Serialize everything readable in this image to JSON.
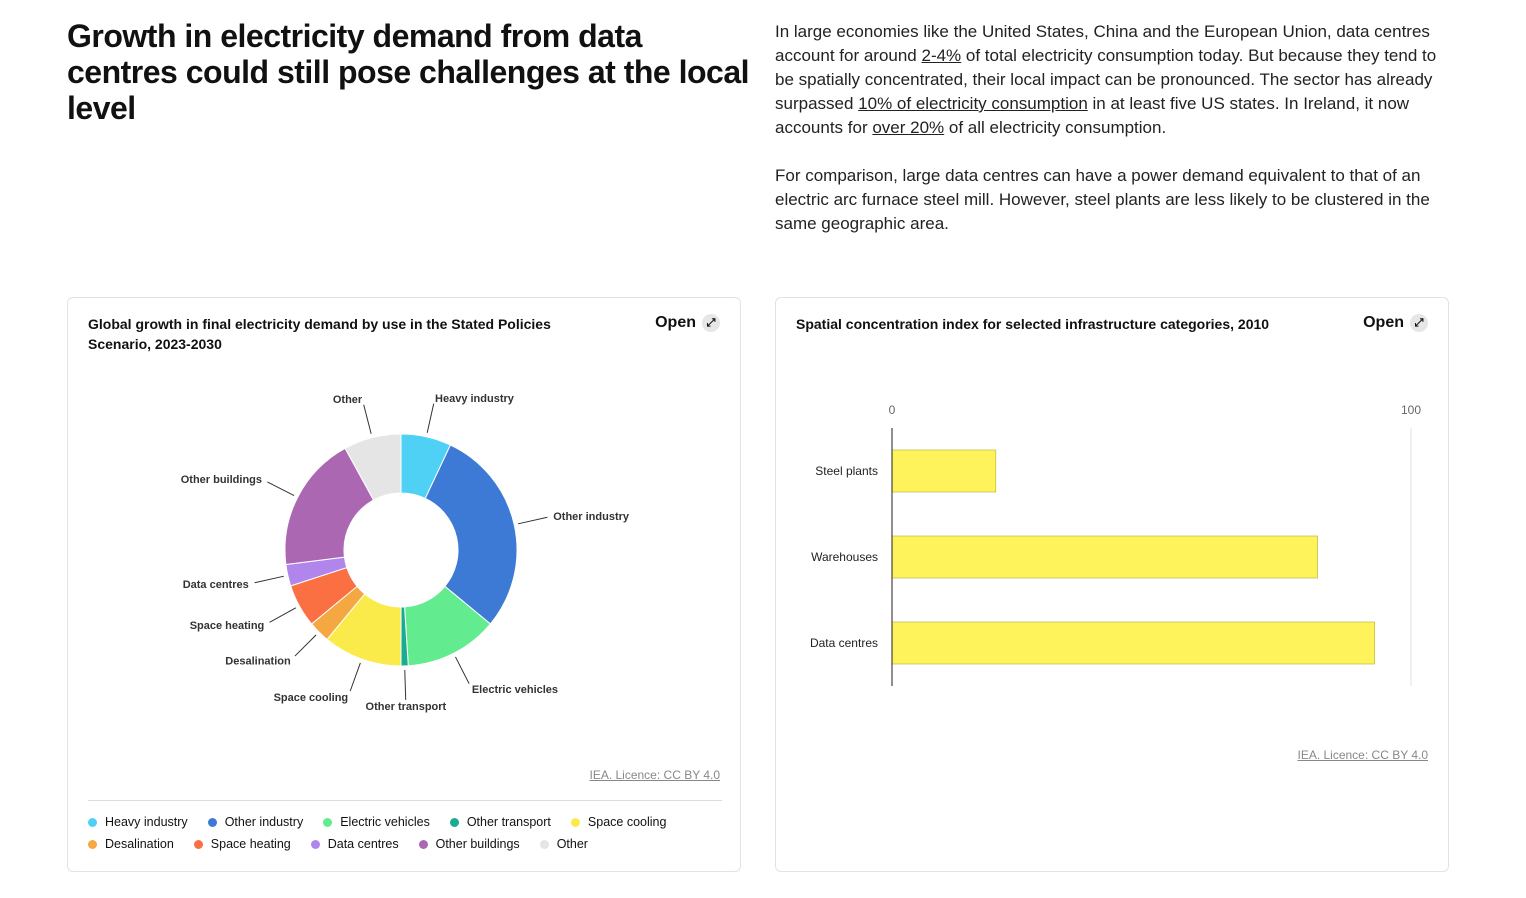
{
  "header": {
    "title": "Growth in electricity demand from data centres could still pose challenges at the local level"
  },
  "paragraphs": [
    [
      "In large economies like the United States, China and the European Union, data centres account for around ",
      "2-4%",
      " of total electricity consumption today. But because they tend to be spatially concentrated, their local impact can be pronounced. The sector has already surpassed ",
      "10% of electricity consumption",
      " in at least five US states. In Ireland, it now accounts for ",
      "over 20%",
      " of all electricity consumption."
    ],
    [
      "For comparison, large data centres can have a power demand equivalent to that of an electric arc furnace steel mill. However, steel plants are less likely to be clustered in the same geographic area."
    ]
  ],
  "chart_data": [
    {
      "type": "donut",
      "title": "Global growth in final electricity demand by use in the Stated Policies Scenario, 2023-2030",
      "open_label": "Open",
      "source": "IEA. Licence: CC BY 4.0",
      "categories": [
        "Heavy industry",
        "Other industry",
        "Electric vehicles",
        "Other transport",
        "Space cooling",
        "Desalination",
        "Space heating",
        "Data centres",
        "Other buildings",
        "Other"
      ],
      "values": [
        7,
        29,
        13,
        1,
        11,
        3,
        6,
        3,
        19,
        8
      ],
      "colors": [
        "#4fd0f5",
        "#3d7ad6",
        "#62ec8f",
        "#1aab93",
        "#fbeb4a",
        "#f5a742",
        "#fa7043",
        "#b086ec",
        "#ab67b1",
        "#e5e5e5"
      ],
      "legend": "bottom"
    },
    {
      "type": "hbar",
      "title": "Spatial concentration index for selected infrastructure categories, 2010",
      "open_label": "Open",
      "source": "IEA. Licence: CC BY 4.0",
      "categories": [
        "Steel plants",
        "Warehouses",
        "Data centres"
      ],
      "values": [
        20,
        82,
        93
      ],
      "color": "#fff35c",
      "xlim": [
        0,
        100
      ],
      "xticks": [
        0,
        100
      ],
      "grid": true
    }
  ]
}
